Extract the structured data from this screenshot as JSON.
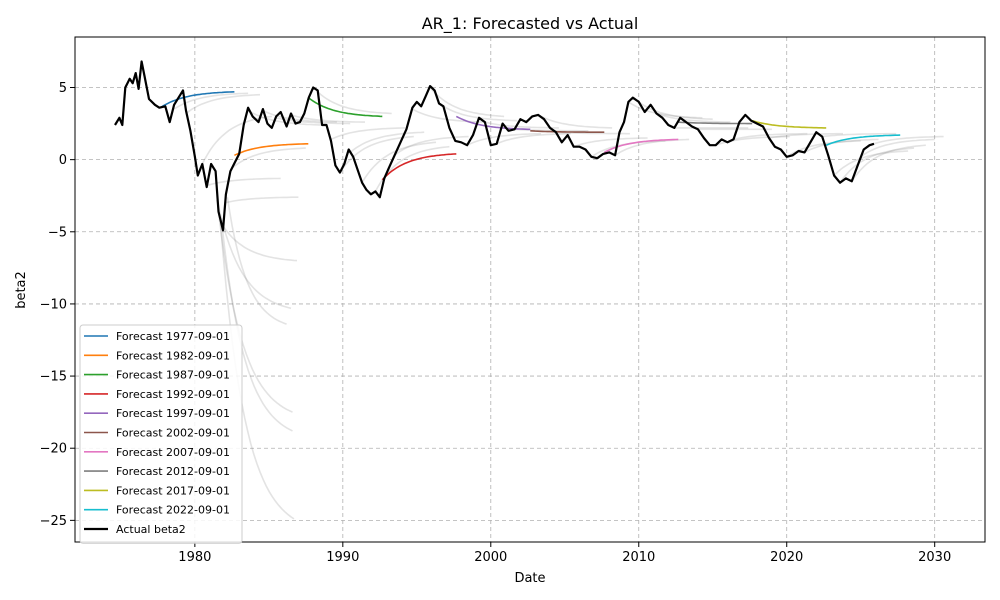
{
  "chart_data": {
    "type": "line",
    "title": "AR_1: Forecasted vs Actual",
    "xlabel": "Date",
    "ylabel": "beta2",
    "xlim": [
      1971.9,
      2033.4
    ],
    "ylim": [
      -26.5,
      8.5
    ],
    "x_ticks": [
      1980,
      1990,
      2000,
      2010,
      2020,
      2030
    ],
    "y_ticks": [
      5,
      0,
      -5,
      -10,
      -15,
      -20,
      -25
    ],
    "y_tick_labels": [
      "5",
      "0",
      "−5",
      "−10",
      "−15",
      "−20",
      "−25"
    ],
    "grid": true,
    "legend_position": "lower-left",
    "actual": {
      "name": "Actual beta2",
      "color": "#000000",
      "points": [
        [
          1974.6,
          2.4
        ],
        [
          1974.9,
          2.9
        ],
        [
          1975.1,
          2.4
        ],
        [
          1975.3,
          5.0
        ],
        [
          1975.6,
          5.6
        ],
        [
          1975.8,
          5.3
        ],
        [
          1976.0,
          6.0
        ],
        [
          1976.2,
          4.9
        ],
        [
          1976.4,
          6.8
        ],
        [
          1976.6,
          5.8
        ],
        [
          1976.9,
          4.2
        ],
        [
          1977.3,
          3.8
        ],
        [
          1977.6,
          3.6
        ],
        [
          1978.0,
          3.7
        ],
        [
          1978.3,
          2.6
        ],
        [
          1978.6,
          3.8
        ],
        [
          1978.9,
          4.3
        ],
        [
          1979.2,
          4.8
        ],
        [
          1979.4,
          3.4
        ],
        [
          1979.7,
          2.0
        ],
        [
          1980.0,
          0.2
        ],
        [
          1980.2,
          -1.1
        ],
        [
          1980.5,
          -0.3
        ],
        [
          1980.8,
          -1.9
        ],
        [
          1981.1,
          -0.3
        ],
        [
          1981.4,
          -0.8
        ],
        [
          1981.6,
          -3.6
        ],
        [
          1981.9,
          -4.9
        ],
        [
          1982.1,
          -2.4
        ],
        [
          1982.4,
          -0.8
        ],
        [
          1982.7,
          -0.2
        ],
        [
          1983.0,
          0.4
        ],
        [
          1983.3,
          2.4
        ],
        [
          1983.6,
          3.6
        ],
        [
          1983.9,
          3.0
        ],
        [
          1984.3,
          2.6
        ],
        [
          1984.6,
          3.5
        ],
        [
          1984.9,
          2.5
        ],
        [
          1985.2,
          2.2
        ],
        [
          1985.5,
          3.0
        ],
        [
          1985.8,
          3.3
        ],
        [
          1986.2,
          2.3
        ],
        [
          1986.5,
          3.2
        ],
        [
          1986.8,
          2.5
        ],
        [
          1987.1,
          2.6
        ],
        [
          1987.4,
          3.2
        ],
        [
          1987.7,
          4.3
        ],
        [
          1988.0,
          5.0
        ],
        [
          1988.3,
          4.8
        ],
        [
          1988.6,
          2.4
        ],
        [
          1988.9,
          2.4
        ],
        [
          1989.2,
          1.3
        ],
        [
          1989.5,
          -0.4
        ],
        [
          1989.8,
          -0.9
        ],
        [
          1990.1,
          -0.3
        ],
        [
          1990.4,
          0.7
        ],
        [
          1990.7,
          0.2
        ],
        [
          1991.0,
          -0.7
        ],
        [
          1991.3,
          -1.6
        ],
        [
          1991.6,
          -2.1
        ],
        [
          1991.9,
          -2.4
        ],
        [
          1992.2,
          -2.2
        ],
        [
          1992.5,
          -2.6
        ],
        [
          1992.8,
          -1.3
        ],
        [
          1993.1,
          -0.6
        ],
        [
          1993.5,
          0.3
        ],
        [
          1993.9,
          1.2
        ],
        [
          1994.3,
          2.1
        ],
        [
          1994.7,
          3.6
        ],
        [
          1995.0,
          4.0
        ],
        [
          1995.3,
          3.7
        ],
        [
          1995.6,
          4.4
        ],
        [
          1995.9,
          5.1
        ],
        [
          1996.2,
          4.8
        ],
        [
          1996.5,
          3.9
        ],
        [
          1996.8,
          3.7
        ],
        [
          1997.2,
          2.2
        ],
        [
          1997.6,
          1.3
        ],
        [
          1998.0,
          1.2
        ],
        [
          1998.4,
          1.0
        ],
        [
          1998.8,
          1.7
        ],
        [
          1999.2,
          2.9
        ],
        [
          1999.6,
          2.6
        ],
        [
          2000.0,
          1.0
        ],
        [
          2000.4,
          1.1
        ],
        [
          2000.8,
          2.5
        ],
        [
          2001.2,
          2.0
        ],
        [
          2001.6,
          2.1
        ],
        [
          2002.0,
          2.8
        ],
        [
          2002.4,
          2.6
        ],
        [
          2002.8,
          3.0
        ],
        [
          2003.2,
          3.1
        ],
        [
          2003.6,
          2.8
        ],
        [
          2004.0,
          2.2
        ],
        [
          2004.4,
          1.9
        ],
        [
          2004.8,
          1.2
        ],
        [
          2005.2,
          1.7
        ],
        [
          2005.6,
          0.9
        ],
        [
          2006.0,
          0.9
        ],
        [
          2006.4,
          0.7
        ],
        [
          2006.8,
          0.2
        ],
        [
          2007.2,
          0.1
        ],
        [
          2007.6,
          0.4
        ],
        [
          2008.0,
          0.5
        ],
        [
          2008.4,
          0.3
        ],
        [
          2008.7,
          1.9
        ],
        [
          2009.0,
          2.6
        ],
        [
          2009.3,
          4.0
        ],
        [
          2009.6,
          4.3
        ],
        [
          2010.0,
          4.0
        ],
        [
          2010.4,
          3.3
        ],
        [
          2010.8,
          3.8
        ],
        [
          2011.2,
          3.2
        ],
        [
          2011.6,
          2.9
        ],
        [
          2012.0,
          2.4
        ],
        [
          2012.4,
          2.2
        ],
        [
          2012.8,
          2.9
        ],
        [
          2013.2,
          2.6
        ],
        [
          2013.6,
          2.3
        ],
        [
          2014.0,
          2.1
        ],
        [
          2014.4,
          1.5
        ],
        [
          2014.8,
          1.0
        ],
        [
          2015.2,
          1.0
        ],
        [
          2015.6,
          1.4
        ],
        [
          2016.0,
          1.2
        ],
        [
          2016.4,
          1.4
        ],
        [
          2016.8,
          2.6
        ],
        [
          2017.2,
          3.1
        ],
        [
          2017.6,
          2.7
        ],
        [
          2018.0,
          2.5
        ],
        [
          2018.4,
          2.3
        ],
        [
          2018.8,
          1.5
        ],
        [
          2019.2,
          0.9
        ],
        [
          2019.6,
          0.7
        ],
        [
          2020.0,
          0.2
        ],
        [
          2020.4,
          0.3
        ],
        [
          2020.8,
          0.6
        ],
        [
          2021.2,
          0.5
        ],
        [
          2021.6,
          1.2
        ],
        [
          2022.0,
          1.9
        ],
        [
          2022.4,
          1.6
        ],
        [
          2022.8,
          0.3
        ],
        [
          2023.2,
          -1.1
        ],
        [
          2023.6,
          -1.6
        ],
        [
          2024.0,
          -1.3
        ],
        [
          2024.4,
          -1.5
        ],
        [
          2024.8,
          -0.4
        ],
        [
          2025.2,
          0.7
        ],
        [
          2025.6,
          1.0
        ],
        [
          2025.9,
          1.1
        ]
      ]
    },
    "series": [
      {
        "name": "Forecast 1977-09-01",
        "color": "#1f77b4",
        "x_start": 1977.67,
        "x_end": 1982.67,
        "y_start": 3.6,
        "y_end": 4.7
      },
      {
        "name": "Forecast 1982-09-01",
        "color": "#ff7f0e",
        "x_start": 1982.67,
        "x_end": 1987.67,
        "y_start": 0.3,
        "y_end": 1.1
      },
      {
        "name": "Forecast 1987-09-01",
        "color": "#2ca02c",
        "x_start": 1987.67,
        "x_end": 1992.67,
        "y_start": 4.3,
        "y_end": 3.0
      },
      {
        "name": "Forecast 1992-09-01",
        "color": "#d62728",
        "x_start": 1992.67,
        "x_end": 1997.67,
        "y_start": -1.4,
        "y_end": 0.4
      },
      {
        "name": "Forecast 1997-09-01",
        "color": "#9467bd",
        "x_start": 1997.67,
        "x_end": 2002.67,
        "y_start": 3.0,
        "y_end": 2.1
      },
      {
        "name": "Forecast 2002-09-01",
        "color": "#8c564b",
        "x_start": 2002.67,
        "x_end": 2007.67,
        "y_start": 2.0,
        "y_end": 1.9
      },
      {
        "name": "Forecast 2007-09-01",
        "color": "#e377c2",
        "x_start": 2007.67,
        "x_end": 2012.67,
        "y_start": 0.5,
        "y_end": 1.4
      },
      {
        "name": "Forecast 2012-09-01",
        "color": "#7f7f7f",
        "x_start": 2012.67,
        "x_end": 2017.67,
        "y_start": 2.6,
        "y_end": 2.5
      },
      {
        "name": "Forecast 2017-09-01",
        "color": "#bcbd22",
        "x_start": 2017.67,
        "x_end": 2022.67,
        "y_start": 2.7,
        "y_end": 2.2
      },
      {
        "name": "Forecast 2022-09-01",
        "color": "#17becf",
        "x_start": 2022.67,
        "x_end": 2027.67,
        "y_start": 1.0,
        "y_end": 1.7
      }
    ],
    "background_forecasts": [
      {
        "x_start": 1978.6,
        "x_end": 1983.6,
        "y_start": 3.5,
        "y_end": 4.6
      },
      {
        "x_start": 1979.4,
        "x_end": 1984.4,
        "y_start": 3.2,
        "y_end": 4.5
      },
      {
        "x_start": 1980.2,
        "x_end": 1985.2,
        "y_start": -1.0,
        "y_end": 3.0
      },
      {
        "x_start": 1980.8,
        "x_end": 1985.8,
        "y_start": -1.8,
        "y_end": -1.3
      },
      {
        "x_start": 1981.5,
        "x_end": 1986.5,
        "y_start": -2.8,
        "y_end": -10.3
      },
      {
        "x_start": 1981.6,
        "x_end": 1986.6,
        "y_start": -3.6,
        "y_end": -17.5
      },
      {
        "x_start": 1981.7,
        "x_end": 1986.7,
        "y_start": -4.0,
        "y_end": -24.9
      },
      {
        "x_start": 1981.8,
        "x_end": 1986.6,
        "y_start": -4.2,
        "y_end": -18.8
      },
      {
        "x_start": 1981.9,
        "x_end": 1986.9,
        "y_start": -4.6,
        "y_end": -7.0
      },
      {
        "x_start": 1982.0,
        "x_end": 1987.0,
        "y_start": -3.0,
        "y_end": -2.6
      },
      {
        "x_start": 1982.2,
        "x_end": 1986.2,
        "y_start": -2.6,
        "y_end": -11.4
      },
      {
        "x_start": 1982.5,
        "x_end": 1987.5,
        "y_start": -0.6,
        "y_end": 0.8
      },
      {
        "x_start": 1983.6,
        "x_end": 1988.6,
        "y_start": 3.4,
        "y_end": 2.4
      },
      {
        "x_start": 1984.6,
        "x_end": 1989.6,
        "y_start": 3.4,
        "y_end": 2.6
      },
      {
        "x_start": 1985.5,
        "x_end": 1990.5,
        "y_start": 2.9,
        "y_end": 2.5
      },
      {
        "x_start": 1986.5,
        "x_end": 1991.5,
        "y_start": 3.1,
        "y_end": 2.6
      },
      {
        "x_start": 1988.3,
        "x_end": 1993.3,
        "y_start": 4.7,
        "y_end": 3.2
      },
      {
        "x_start": 1989.2,
        "x_end": 1994.2,
        "y_start": 1.4,
        "y_end": 2.2
      },
      {
        "x_start": 1989.8,
        "x_end": 1994.8,
        "y_start": -0.9,
        "y_end": 1.6
      },
      {
        "x_start": 1990.5,
        "x_end": 1995.5,
        "y_start": 0.5,
        "y_end": 1.9
      },
      {
        "x_start": 1991.3,
        "x_end": 1996.3,
        "y_start": -1.6,
        "y_end": 1.2
      },
      {
        "x_start": 1992.2,
        "x_end": 1997.2,
        "y_start": -2.2,
        "y_end": 0.9
      },
      {
        "x_start": 1993.5,
        "x_end": 1998.5,
        "y_start": 0.3,
        "y_end": 1.6
      },
      {
        "x_start": 1994.7,
        "x_end": 1999.7,
        "y_start": 3.5,
        "y_end": 2.6
      },
      {
        "x_start": 1995.9,
        "x_end": 2000.9,
        "y_start": 5.0,
        "y_end": 3.0
      },
      {
        "x_start": 1996.8,
        "x_end": 2001.8,
        "y_start": 3.7,
        "y_end": 2.7
      },
      {
        "x_start": 1998.4,
        "x_end": 2003.4,
        "y_start": 1.0,
        "y_end": 1.8
      },
      {
        "x_start": 1999.6,
        "x_end": 2004.6,
        "y_start": 2.6,
        "y_end": 2.2
      },
      {
        "x_start": 2000.4,
        "x_end": 2005.4,
        "y_start": 1.1,
        "y_end": 1.8
      },
      {
        "x_start": 2001.6,
        "x_end": 2006.6,
        "y_start": 2.1,
        "y_end": 2.0
      },
      {
        "x_start": 2003.2,
        "x_end": 2008.2,
        "y_start": 3.1,
        "y_end": 2.2
      },
      {
        "x_start": 2004.4,
        "x_end": 2009.4,
        "y_start": 1.9,
        "y_end": 1.8
      },
      {
        "x_start": 2005.6,
        "x_end": 2010.6,
        "y_start": 0.9,
        "y_end": 1.5
      },
      {
        "x_start": 2006.8,
        "x_end": 2011.8,
        "y_start": 0.2,
        "y_end": 1.3
      },
      {
        "x_start": 2008.4,
        "x_end": 2013.4,
        "y_start": 0.3,
        "y_end": 1.4
      },
      {
        "x_start": 2009.3,
        "x_end": 2014.3,
        "y_start": 4.0,
        "y_end": 2.9
      },
      {
        "x_start": 2010.0,
        "x_end": 2015.0,
        "y_start": 4.0,
        "y_end": 2.8
      },
      {
        "x_start": 2011.2,
        "x_end": 2016.2,
        "y_start": 3.2,
        "y_end": 2.6
      },
      {
        "x_start": 2012.4,
        "x_end": 2017.4,
        "y_start": 2.2,
        "y_end": 2.2
      },
      {
        "x_start": 2014.0,
        "x_end": 2019.0,
        "y_start": 2.1,
        "y_end": 2.1
      },
      {
        "x_start": 2015.2,
        "x_end": 2020.2,
        "y_start": 1.0,
        "y_end": 1.6
      },
      {
        "x_start": 2016.4,
        "x_end": 2021.4,
        "y_start": 1.4,
        "y_end": 1.8
      },
      {
        "x_start": 2018.8,
        "x_end": 2023.8,
        "y_start": 1.5,
        "y_end": 1.8
      },
      {
        "x_start": 2020.0,
        "x_end": 2025.0,
        "y_start": 0.2,
        "y_end": 1.3
      },
      {
        "x_start": 2021.2,
        "x_end": 2026.2,
        "y_start": 0.5,
        "y_end": 1.4
      },
      {
        "x_start": 2022.4,
        "x_end": 2027.4,
        "y_start": 1.6,
        "y_end": 1.8
      },
      {
        "x_start": 2023.2,
        "x_end": 2028.2,
        "y_start": -1.1,
        "y_end": 0.6
      },
      {
        "x_start": 2023.6,
        "x_end": 2028.6,
        "y_start": -1.6,
        "y_end": 0.8
      },
      {
        "x_start": 2024.4,
        "x_end": 2029.4,
        "y_start": -1.5,
        "y_end": 1.0
      },
      {
        "x_start": 2025.0,
        "x_end": 2030.0,
        "y_start": 0.2,
        "y_end": 1.4
      },
      {
        "x_start": 2025.6,
        "x_end": 2030.6,
        "y_start": 1.0,
        "y_end": 1.6
      }
    ],
    "background_color": "#808080"
  }
}
